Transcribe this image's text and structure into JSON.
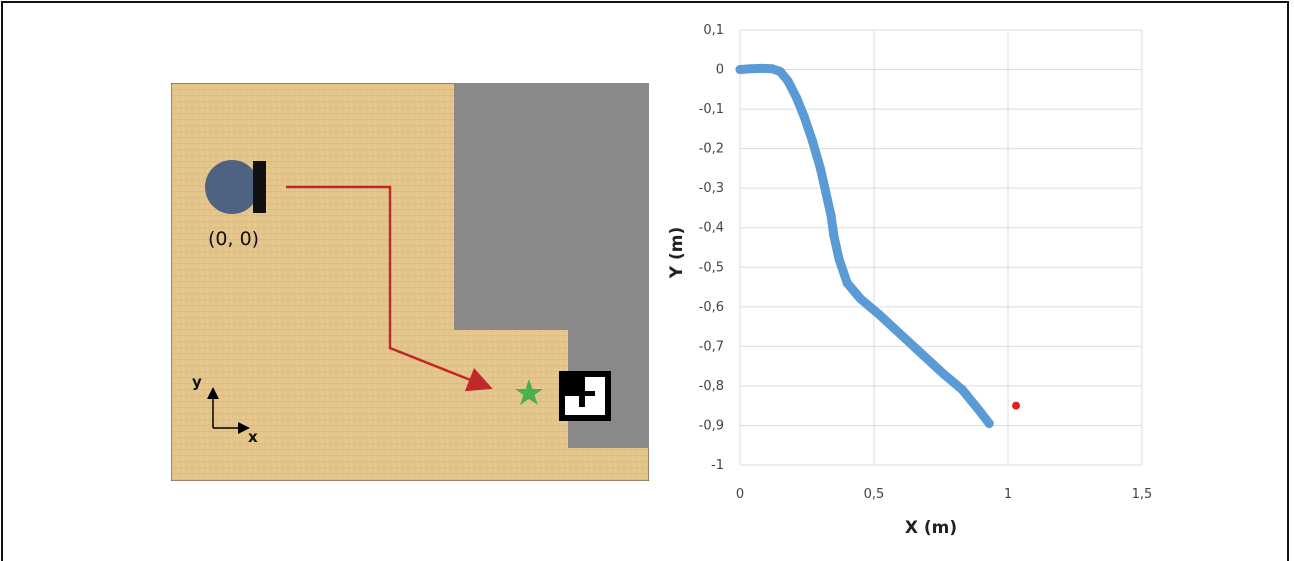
{
  "map": {
    "origin_label": "(0, 0)",
    "axis_x_label": "x",
    "axis_y_label": "y",
    "colors": {
      "floor": "#e3c58c",
      "wall": "#8a8888",
      "robot": "#4f6282",
      "path": "#c0282a",
      "goal_star": "#4caf50",
      "marker": "#000000"
    },
    "icons": [
      "robot-icon",
      "goal-star-icon",
      "aruco-marker-icon",
      "axes-icon"
    ]
  },
  "chart_data": {
    "type": "scatter",
    "xlabel": "X (m)",
    "ylabel": "Y (m)",
    "xlim": [
      0,
      1.5
    ],
    "ylim": [
      -1,
      0.1
    ],
    "x_ticks": [
      "0",
      "0,5",
      "1",
      "1,5"
    ],
    "y_ticks": [
      "0,1",
      "0",
      "-0,1",
      "-0,2",
      "-0,3",
      "-0,4",
      "-0,5",
      "-0,6",
      "-0,7",
      "-0,8",
      "-0,9",
      "-1"
    ],
    "grid": true,
    "series": [
      {
        "color": "#5b9bd5",
        "points": [
          [
            0,
            0
          ],
          [
            0.04,
            0.002
          ],
          [
            0.08,
            0.003
          ],
          [
            0.12,
            0.002
          ],
          [
            0.15,
            -0.005
          ],
          [
            0.18,
            -0.03
          ],
          [
            0.21,
            -0.07
          ],
          [
            0.24,
            -0.12
          ],
          [
            0.27,
            -0.18
          ],
          [
            0.3,
            -0.25
          ],
          [
            0.32,
            -0.31
          ],
          [
            0.34,
            -0.37
          ],
          [
            0.35,
            -0.42
          ],
          [
            0.37,
            -0.48
          ],
          [
            0.4,
            -0.54
          ],
          [
            0.45,
            -0.58
          ],
          [
            0.52,
            -0.62
          ],
          [
            0.6,
            -0.67
          ],
          [
            0.68,
            -0.72
          ],
          [
            0.76,
            -0.77
          ],
          [
            0.83,
            -0.81
          ],
          [
            0.89,
            -0.86
          ],
          [
            0.93,
            -0.895
          ]
        ]
      },
      {
        "color": "#e02020",
        "points": [
          [
            1.03,
            -0.85
          ]
        ]
      }
    ]
  }
}
